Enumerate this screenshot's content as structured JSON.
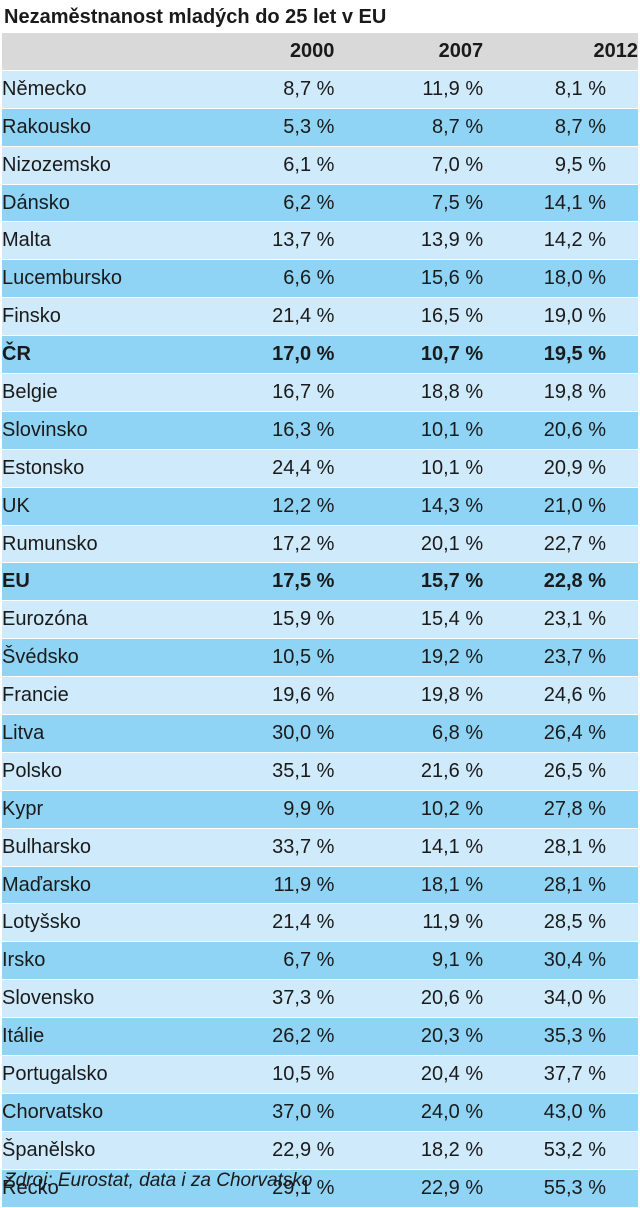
{
  "chart_data": {
    "type": "table",
    "title": "Nezaměstnanost mladých do 25 let v EU",
    "columns": [
      "",
      "2000",
      "2007",
      "2012"
    ],
    "rows": [
      {
        "name": "Německo",
        "values": [
          "8,7 %",
          "11,9 %",
          "8,1 %"
        ],
        "bold": false
      },
      {
        "name": "Rakousko",
        "values": [
          "5,3 %",
          "8,7 %",
          "8,7 %"
        ],
        "bold": false
      },
      {
        "name": "Nizozemsko",
        "values": [
          "6,1 %",
          "7,0 %",
          "9,5 %"
        ],
        "bold": false
      },
      {
        "name": "Dánsko",
        "values": [
          "6,2 %",
          "7,5 %",
          "14,1 %"
        ],
        "bold": false
      },
      {
        "name": "Malta",
        "values": [
          "13,7 %",
          "13,9 %",
          "14,2 %"
        ],
        "bold": false
      },
      {
        "name": "Lucembursko",
        "values": [
          "6,6 %",
          "15,6 %",
          "18,0 %"
        ],
        "bold": false
      },
      {
        "name": "Finsko",
        "values": [
          "21,4 %",
          "16,5 %",
          "19,0 %"
        ],
        "bold": false
      },
      {
        "name": "ČR",
        "values": [
          "17,0 %",
          "10,7 %",
          "19,5 %"
        ],
        "bold": true
      },
      {
        "name": "Belgie",
        "values": [
          "16,7 %",
          "18,8 %",
          "19,8 %"
        ],
        "bold": false
      },
      {
        "name": "Slovinsko",
        "values": [
          "16,3 %",
          "10,1 %",
          "20,6 %"
        ],
        "bold": false
      },
      {
        "name": "Estonsko",
        "values": [
          "24,4 %",
          "10,1 %",
          "20,9 %"
        ],
        "bold": false
      },
      {
        "name": "UK",
        "values": [
          "12,2 %",
          "14,3 %",
          "21,0 %"
        ],
        "bold": false
      },
      {
        "name": "Rumunsko",
        "values": [
          "17,2 %",
          "20,1 %",
          "22,7 %"
        ],
        "bold": false
      },
      {
        "name": "EU",
        "values": [
          "17,5 %",
          "15,7 %",
          "22,8 %"
        ],
        "bold": true
      },
      {
        "name": "Eurozóna",
        "values": [
          "15,9 %",
          "15,4 %",
          "23,1 %"
        ],
        "bold": false
      },
      {
        "name": "Švédsko",
        "values": [
          "10,5 %",
          "19,2 %",
          "23,7 %"
        ],
        "bold": false
      },
      {
        "name": "Francie",
        "values": [
          "19,6 %",
          "19,8 %",
          "24,6 %"
        ],
        "bold": false
      },
      {
        "name": "Litva",
        "values": [
          "30,0 %",
          "6,8 %",
          "26,4 %"
        ],
        "bold": false
      },
      {
        "name": "Polsko",
        "values": [
          "35,1 %",
          "21,6 %",
          "26,5 %"
        ],
        "bold": false
      },
      {
        "name": "Kypr",
        "values": [
          "9,9 %",
          "10,2 %",
          "27,8 %"
        ],
        "bold": false
      },
      {
        "name": "Bulharsko",
        "values": [
          "33,7 %",
          "14,1 %",
          "28,1 %"
        ],
        "bold": false
      },
      {
        "name": "Maďarsko",
        "values": [
          "11,9 %",
          "18,1 %",
          "28,1 %"
        ],
        "bold": false
      },
      {
        "name": "Lotyšsko",
        "values": [
          "21,4 %",
          "11,9 %",
          "28,5 %"
        ],
        "bold": false
      },
      {
        "name": "Irsko",
        "values": [
          "6,7 %",
          "9,1 %",
          "30,4 %"
        ],
        "bold": false
      },
      {
        "name": "Slovensko",
        "values": [
          "37,3 %",
          "20,6 %",
          "34,0 %"
        ],
        "bold": false
      },
      {
        "name": "Itálie",
        "values": [
          "26,2 %",
          "20,3 %",
          "35,3 %"
        ],
        "bold": false
      },
      {
        "name": "Portugalsko",
        "values": [
          "10,5 %",
          "20,4 %",
          "37,7 %"
        ],
        "bold": false
      },
      {
        "name": "Chorvatsko",
        "values": [
          "37,0 %",
          "24,0 %",
          "43,0 %"
        ],
        "bold": false
      },
      {
        "name": "Španělsko",
        "values": [
          "22,9 %",
          "18,2 %",
          "53,2 %"
        ],
        "bold": false
      },
      {
        "name": "Řecko",
        "values": [
          "29,1 %",
          "22,9 %",
          "55,3 %"
        ],
        "bold": false
      }
    ],
    "source": "Zdroj: Eurostat, data i za Chorvatsko",
    "colors": {
      "header_bg": "#d9d9d9",
      "row_light": "#cfeafb",
      "row_dark": "#8fd3f5"
    }
  }
}
